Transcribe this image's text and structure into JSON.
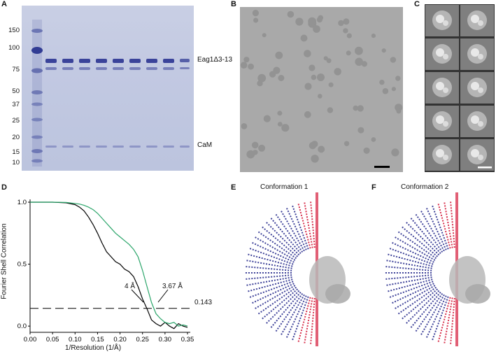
{
  "panels": {
    "a": "A",
    "b": "B",
    "c": "C",
    "d": "D",
    "e": "E",
    "f": "F"
  },
  "gel": {
    "markers": [
      "150",
      "100",
      "75",
      "50",
      "37",
      "25",
      "20",
      "15",
      "10"
    ],
    "band_labels": {
      "upper": "Eag1Δ3-13",
      "lower": "CaM"
    }
  },
  "fsc": {
    "res_label_1": "4 Å",
    "res_label_2": "3.67 Å",
    "threshold_label": "0.143"
  },
  "conformations": {
    "e_title": "Conformation 1",
    "f_title": "Conformation 2"
  },
  "colors": {
    "gold_standard": "#000000",
    "model_map": "#2ba56a",
    "euler_low": "#2b2f8f",
    "euler_high": "#d41b3a"
  },
  "chart_data": {
    "type": "line",
    "xlabel": "1/Resolution (1/Å)",
    "ylabel": "Fourier Shell Correlation",
    "xlim": [
      0.0,
      0.35
    ],
    "ylim": [
      -0.05,
      1.0
    ],
    "x_ticks": [
      "0.00",
      "0.05",
      "0.10",
      "0.15",
      "0.20",
      "0.25",
      "0.30",
      "0.35"
    ],
    "y_ticks": [
      "0.0",
      "0.5",
      "1.0"
    ],
    "threshold": 0.143,
    "series": [
      {
        "color": "#000000",
        "x": [
          0.0,
          0.02,
          0.05,
          0.08,
          0.1,
          0.11,
          0.12,
          0.13,
          0.14,
          0.15,
          0.16,
          0.17,
          0.18,
          0.19,
          0.2,
          0.21,
          0.22,
          0.23,
          0.24,
          0.25,
          0.26,
          0.27,
          0.28,
          0.29,
          0.3,
          0.31,
          0.32,
          0.33,
          0.34,
          0.35
        ],
        "y": [
          1.0,
          1.0,
          1.0,
          0.995,
          0.98,
          0.96,
          0.93,
          0.88,
          0.82,
          0.75,
          0.67,
          0.6,
          0.56,
          0.52,
          0.5,
          0.46,
          0.44,
          0.4,
          0.32,
          0.22,
          0.14,
          0.05,
          0.02,
          0.0,
          0.03,
          0.0,
          -0.02,
          0.02,
          0.0,
          -0.01
        ]
      },
      {
        "color": "#2ba56a",
        "x": [
          0.0,
          0.02,
          0.05,
          0.08,
          0.1,
          0.11,
          0.12,
          0.13,
          0.14,
          0.15,
          0.16,
          0.17,
          0.18,
          0.19,
          0.2,
          0.21,
          0.22,
          0.23,
          0.24,
          0.25,
          0.26,
          0.27,
          0.28,
          0.29,
          0.3,
          0.31,
          0.32,
          0.33,
          0.34,
          0.35
        ],
        "y": [
          1.0,
          1.0,
          1.0,
          0.998,
          0.99,
          0.985,
          0.975,
          0.96,
          0.94,
          0.91,
          0.87,
          0.83,
          0.79,
          0.75,
          0.72,
          0.69,
          0.66,
          0.62,
          0.56,
          0.45,
          0.32,
          0.19,
          0.1,
          0.06,
          0.03,
          0.02,
          0.03,
          0.0,
          0.01,
          0.0
        ]
      }
    ]
  }
}
